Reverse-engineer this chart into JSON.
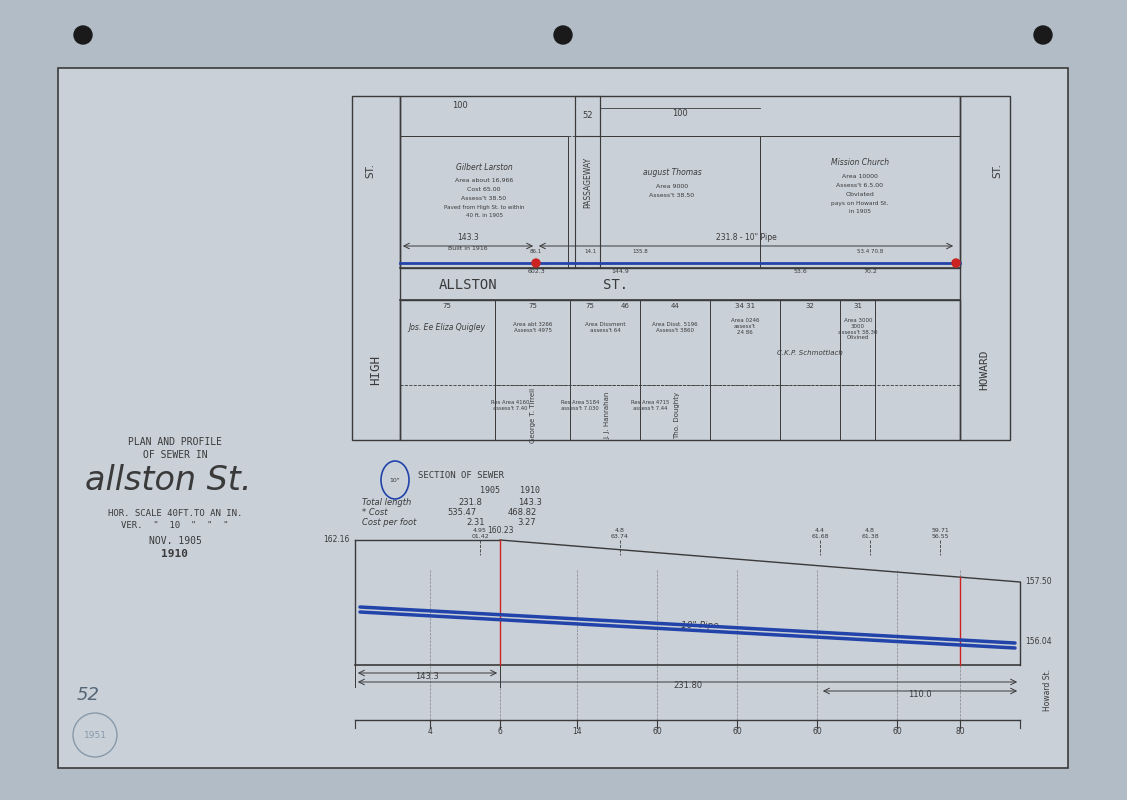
{
  "bg_color": "#b2bcc6",
  "paper_color": "#c9d0d8",
  "line_color": "#3a3a3a",
  "blue_color": "#2244aa",
  "red_color": "#cc2222",
  "title_line1": "PLAN AND PROFILE",
  "title_line2": "OF SEWER IN",
  "title_main": "allston St.",
  "title_scale1": "HOR. SCALE 40FT.TO AN IN.",
  "title_scale2": "VER.  \"  10  \"  \"  \"",
  "title_date1": "NOV. 1905",
  "title_date2": "1910",
  "label_52": "52"
}
